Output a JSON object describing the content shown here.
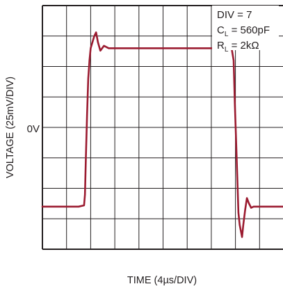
{
  "chart_data": {
    "type": "line",
    "title": "",
    "xlabel": "TIME (4µs/DIV)",
    "ylabel": "VOLTAGE (25mV/DIV)",
    "x_unit": "µs",
    "y_unit": "mV",
    "xlim": [
      0,
      40
    ],
    "ylim": [
      -100,
      100
    ],
    "x_per_div": 4,
    "y_per_div": 25,
    "grid": true,
    "zero_label": "0V",
    "zero_level": 0,
    "annotations": [
      "DIV = 7",
      "C",
      "L",
      " = 560pF",
      "R",
      "L",
      " = 2kΩ"
    ],
    "trace_color": "#9b1b30",
    "series": [
      {
        "x": [
          0,
          2,
          4,
          6,
          6.9,
          7.05,
          7.2,
          7.4,
          7.6,
          7.8,
          8.0,
          8.3,
          8.6,
          8.9,
          9.2,
          9.6,
          10.2,
          11,
          14,
          18,
          22,
          26,
          28,
          30,
          31.4,
          31.7,
          31.9,
          32.1,
          32.3,
          32.5,
          32.7,
          32.9,
          33.1,
          33.3,
          33.6,
          33.9,
          34.2,
          34.6,
          35,
          36,
          38,
          40
        ],
        "y": [
          -65,
          -65,
          -65,
          -65,
          -64,
          -55,
          -25,
          10,
          40,
          55,
          65,
          70,
          75,
          78,
          70,
          63,
          67,
          65,
          65,
          65,
          65,
          65,
          65,
          65,
          64,
          55,
          20,
          -10,
          -40,
          -70,
          -80,
          -85,
          -90,
          -80,
          -68,
          -58,
          -62,
          -66,
          -65,
          -65,
          -65,
          -65
        ]
      }
    ]
  }
}
